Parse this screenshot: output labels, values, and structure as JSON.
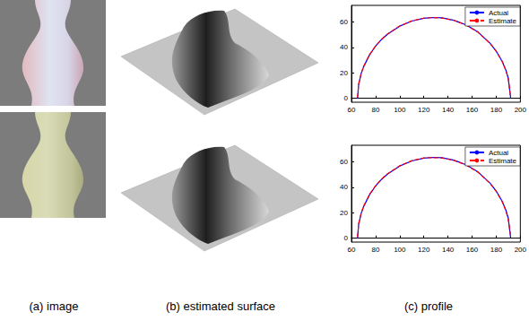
{
  "captions": [
    "(a) image",
    "(b) estimated surface",
    "(c) profile"
  ],
  "chart_data": [
    {
      "type": "line",
      "x": [
        65,
        66,
        68,
        70,
        75,
        80,
        85,
        90,
        100,
        110,
        120,
        128,
        135,
        145,
        155,
        165,
        175,
        180,
        185,
        188,
        190,
        192
      ],
      "series": [
        {
          "name": "Actual",
          "color": "#0000ff",
          "line_style": "solid",
          "values": [
            0,
            11.2,
            19.3,
            24.7,
            34.2,
            41.0,
            46.3,
            50.5,
            56.7,
            60.7,
            62.9,
            63.5,
            63.2,
            61.3,
            57.7,
            52.0,
            43.2,
            37.1,
            29.0,
            22.2,
            15.8,
            0
          ]
        },
        {
          "name": "Estimate",
          "color": "#ff0000",
          "line_style": "dashed",
          "values": [
            0.5,
            11.4,
            19.5,
            24.9,
            34.4,
            41.2,
            46.4,
            50.6,
            56.8,
            60.8,
            63.0,
            63.4,
            63.1,
            61.2,
            57.6,
            51.9,
            43.1,
            37.0,
            28.9,
            22.0,
            15.5,
            0.8
          ]
        }
      ],
      "xlim": [
        60,
        200
      ],
      "xticks": [
        60,
        80,
        100,
        120,
        140,
        160,
        180,
        200
      ],
      "ylim": [
        -3,
        73
      ],
      "yticks": [
        0,
        20,
        40,
        60
      ],
      "legend": "upper right",
      "grid": false
    },
    {
      "type": "line",
      "x": [
        65,
        66,
        68,
        70,
        75,
        80,
        85,
        90,
        100,
        110,
        120,
        128,
        135,
        145,
        155,
        165,
        175,
        180,
        185,
        188,
        190,
        192
      ],
      "series": [
        {
          "name": "Actual",
          "color": "#0000ff",
          "line_style": "solid",
          "values": [
            0,
            11.2,
            19.3,
            24.7,
            34.2,
            41.0,
            46.3,
            50.5,
            56.7,
            60.7,
            62.9,
            63.5,
            63.2,
            61.3,
            57.7,
            52.0,
            43.2,
            37.1,
            29.0,
            22.2,
            15.8,
            0
          ]
        },
        {
          "name": "Estimate",
          "color": "#ff0000",
          "line_style": "dashed",
          "values": [
            0.8,
            11.6,
            19.6,
            25.0,
            34.5,
            41.3,
            46.5,
            50.7,
            56.9,
            60.9,
            63.1,
            63.3,
            63.0,
            61.1,
            57.5,
            51.8,
            43.0,
            36.8,
            28.6,
            21.6,
            14.8,
            2.0
          ]
        }
      ],
      "xlim": [
        60,
        200
      ],
      "xticks": [
        60,
        80,
        100,
        120,
        140,
        160,
        180,
        200
      ],
      "ylim": [
        -3,
        73
      ],
      "yticks": [
        0,
        20,
        40,
        60
      ],
      "legend": "upper right",
      "grid": false
    }
  ]
}
